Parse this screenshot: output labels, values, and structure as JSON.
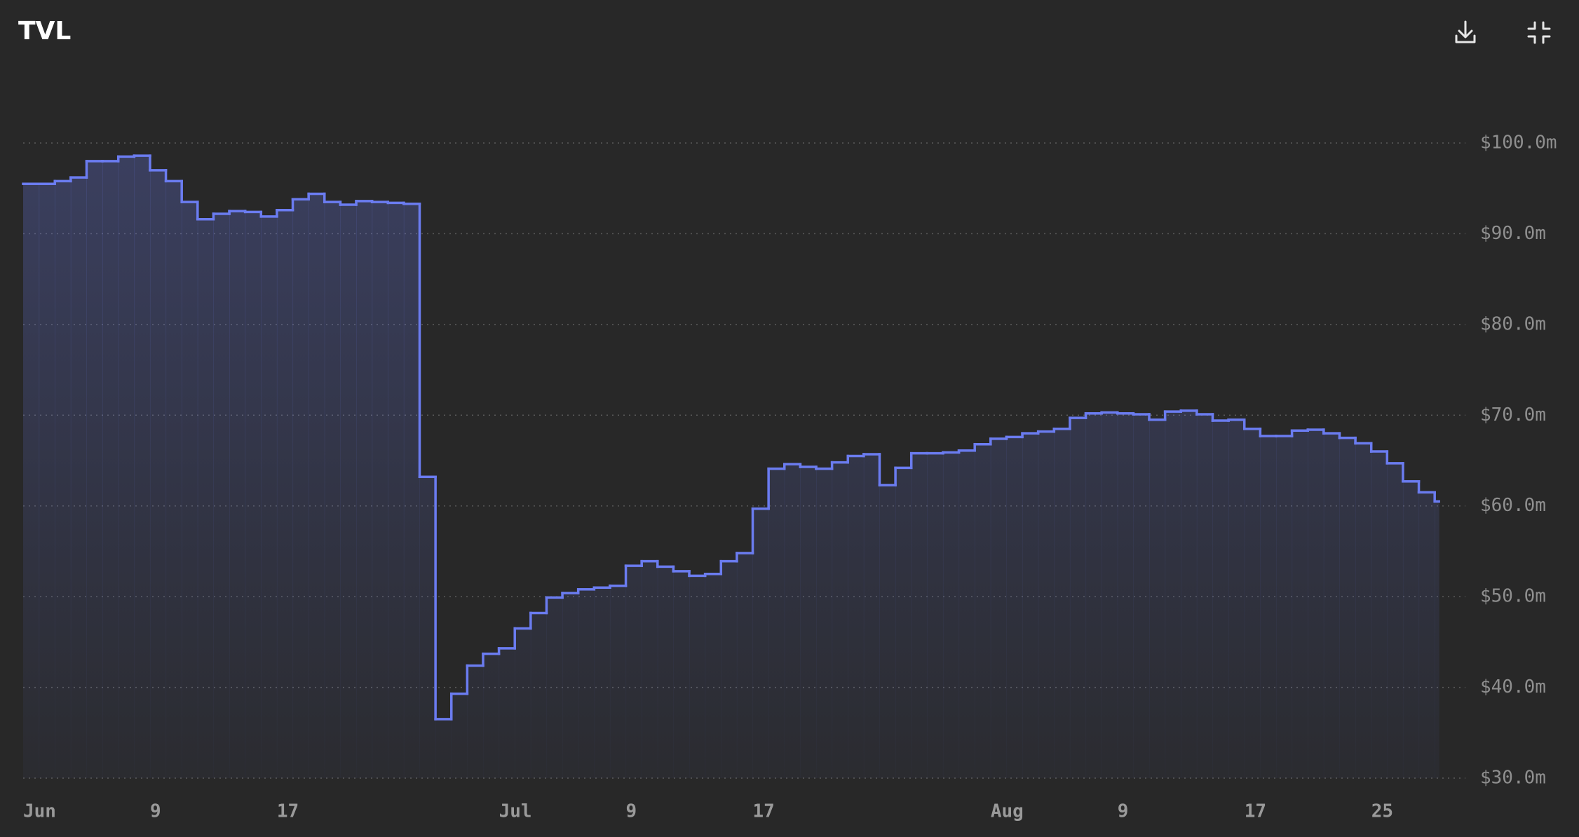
{
  "chart_data": {
    "type": "step-area",
    "title": "TVL",
    "x": [
      "Jun 1",
      "Jun 2",
      "Jun 3",
      "Jun 4",
      "Jun 5",
      "Jun 6",
      "Jun 7",
      "Jun 8",
      "Jun 9",
      "Jun 10",
      "Jun 11",
      "Jun 12",
      "Jun 13",
      "Jun 14",
      "Jun 15",
      "Jun 16",
      "Jun 17",
      "Jun 18",
      "Jun 19",
      "Jun 20",
      "Jun 21",
      "Jun 22",
      "Jun 23",
      "Jun 24",
      "Jun 25",
      "Jun 26",
      "Jun 27",
      "Jun 28",
      "Jun 29",
      "Jun 30",
      "Jul 1",
      "Jul 2",
      "Jul 3",
      "Jul 4",
      "Jul 5",
      "Jul 6",
      "Jul 7",
      "Jul 8",
      "Jul 9",
      "Jul 10",
      "Jul 11",
      "Jul 12",
      "Jul 13",
      "Jul 14",
      "Jul 15",
      "Jul 16",
      "Jul 17",
      "Jul 18",
      "Jul 19",
      "Jul 20",
      "Jul 21",
      "Jul 22",
      "Jul 23",
      "Jul 24",
      "Jul 25",
      "Jul 26",
      "Jul 27",
      "Jul 28",
      "Jul 29",
      "Jul 30",
      "Jul 31",
      "Aug 1",
      "Aug 2",
      "Aug 3",
      "Aug 4",
      "Aug 5",
      "Aug 6",
      "Aug 7",
      "Aug 8",
      "Aug 9",
      "Aug 10",
      "Aug 11",
      "Aug 12",
      "Aug 13",
      "Aug 14",
      "Aug 15",
      "Aug 16",
      "Aug 17",
      "Aug 18",
      "Aug 19",
      "Aug 20",
      "Aug 21",
      "Aug 22",
      "Aug 23",
      "Aug 24",
      "Aug 25",
      "Aug 26",
      "Aug 27",
      "Aug 28",
      "Aug 29"
    ],
    "values": [
      95.5,
      95.5,
      95.8,
      96.2,
      98.0,
      98.0,
      98.5,
      98.6,
      97.0,
      95.8,
      93.5,
      91.6,
      92.2,
      92.5,
      92.4,
      91.9,
      92.6,
      93.8,
      94.4,
      93.5,
      93.2,
      93.6,
      93.5,
      93.4,
      93.3,
      63.2,
      36.5,
      39.3,
      42.4,
      43.7,
      44.3,
      46.5,
      48.2,
      49.9,
      50.4,
      50.8,
      51.0,
      51.2,
      53.4,
      53.9,
      53.3,
      52.8,
      52.3,
      52.5,
      53.9,
      54.8,
      59.7,
      64.1,
      64.6,
      64.3,
      64.1,
      64.8,
      65.5,
      65.7,
      62.3,
      64.2,
      65.8,
      65.8,
      65.9,
      66.1,
      66.8,
      67.4,
      67.6,
      68.0,
      68.2,
      68.5,
      69.7,
      70.2,
      70.3,
      70.2,
      70.1,
      69.5,
      70.4,
      70.5,
      70.1,
      69.4,
      69.5,
      68.5,
      67.7,
      67.7,
      68.3,
      68.4,
      68.0,
      67.5,
      66.9,
      66.0,
      64.7,
      62.7,
      61.5,
      60.5
    ],
    "color": "#6b7cf0",
    "ylim": [
      30,
      100
    ],
    "yticks": [
      {
        "value": 30,
        "label": "$30.0m"
      },
      {
        "value": 40,
        "label": "$40.0m"
      },
      {
        "value": 50,
        "label": "$50.0m"
      },
      {
        "value": 60,
        "label": "$60.0m"
      },
      {
        "value": 70,
        "label": "$70.0m"
      },
      {
        "value": 80,
        "label": "$80.0m"
      },
      {
        "value": 90,
        "label": "$90.0m"
      },
      {
        "value": 100,
        "label": "$100.0m"
      }
    ],
    "xticks": [
      {
        "value": "Jun 1",
        "label": "Jun"
      },
      {
        "value": "Jun 9",
        "label": "9"
      },
      {
        "value": "Jun 17",
        "label": "17"
      },
      {
        "value": "Jul 1",
        "label": "Jul"
      },
      {
        "value": "Jul 9",
        "label": "9"
      },
      {
        "value": "Jul 17",
        "label": "17"
      },
      {
        "value": "Aug 1",
        "label": "Aug"
      },
      {
        "value": "Aug 9",
        "label": "9"
      },
      {
        "value": "Aug 17",
        "label": "17"
      },
      {
        "value": "Aug 25",
        "label": "25"
      }
    ],
    "grid": true
  }
}
